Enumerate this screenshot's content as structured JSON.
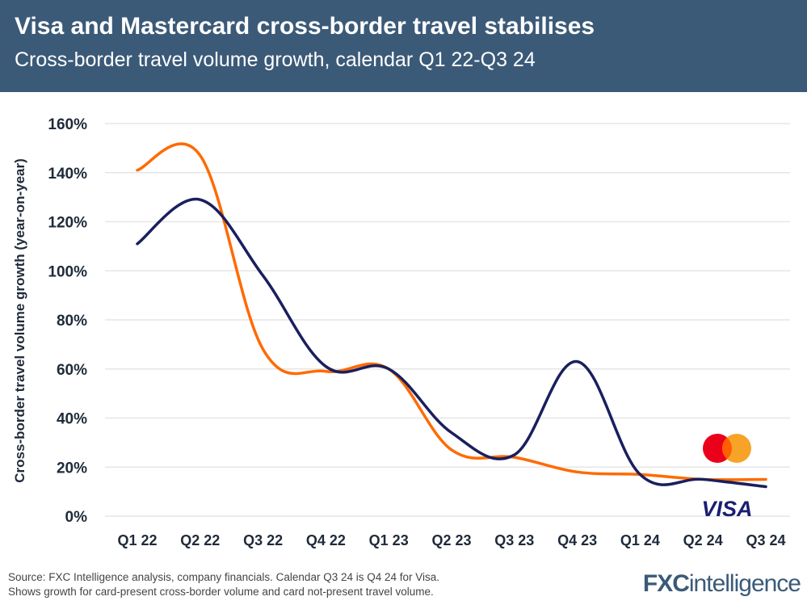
{
  "header": {
    "title": "Visa and Mastercard cross-border travel stabilises",
    "subtitle": "Cross-border travel volume growth, calendar Q1 22-Q3 24"
  },
  "chart_data": {
    "type": "line",
    "ylabel": "Cross-border travel volume growth (year-on-year)",
    "xlabel": "",
    "categories": [
      "Q1 22",
      "Q2 22",
      "Q3 22",
      "Q4 22",
      "Q1 23",
      "Q2 23",
      "Q3 23",
      "Q4 23",
      "Q1 24",
      "Q2 24",
      "Q3 24"
    ],
    "ylim": [
      0,
      160
    ],
    "yticks": [
      0,
      20,
      40,
      60,
      80,
      100,
      120,
      140,
      160
    ],
    "ytick_labels": [
      "0%",
      "20%",
      "40%",
      "60%",
      "80%",
      "100%",
      "120%",
      "140%",
      "160%"
    ],
    "grid": true,
    "series": [
      {
        "name": "Visa",
        "color": "#1a1f5e",
        "values": [
          111,
          129,
          98,
          61,
          60,
          34,
          25,
          63,
          17,
          15,
          12
        ]
      },
      {
        "name": "Mastercard",
        "color": "#ff6a00",
        "values": [
          141,
          147,
          68,
          59,
          60,
          27,
          24,
          18,
          17,
          15,
          15
        ]
      }
    ],
    "legend": "logos at right end of lines",
    "legend_labels": {
      "mastercard_logo": "Mastercard",
      "visa_logo": "VISA"
    }
  },
  "footer": {
    "source": "Source: FXC Intelligence analysis, company financials. Calendar Q3 24 is Q4 24 for Visa.",
    "note": "Shows growth for card-present cross-border volume and card not-present travel volume.",
    "brand_a": "FXC",
    "brand_b": "intelligence"
  }
}
